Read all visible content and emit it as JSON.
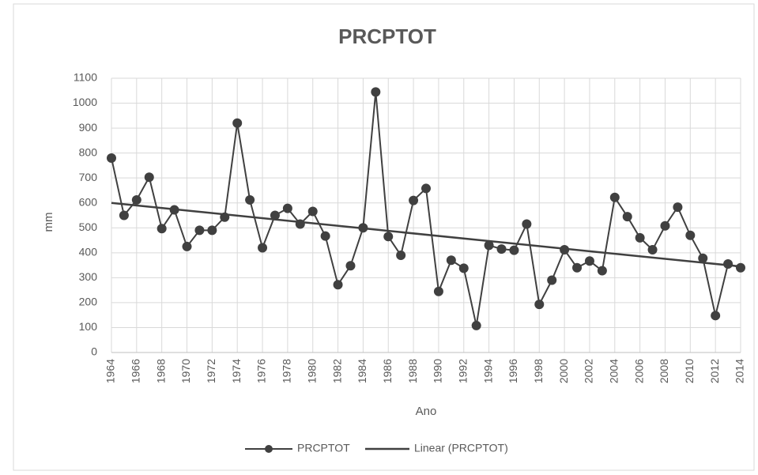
{
  "chart_data": {
    "type": "line",
    "title": "PRCPTOT",
    "x_label": "Ano",
    "y_label": "mm",
    "x": [
      1964,
      1965,
      1966,
      1967,
      1968,
      1969,
      1970,
      1971,
      1972,
      1973,
      1974,
      1975,
      1976,
      1977,
      1978,
      1979,
      1980,
      1981,
      1982,
      1983,
      1984,
      1985,
      1986,
      1987,
      1988,
      1989,
      1990,
      1991,
      1992,
      1993,
      1994,
      1995,
      1996,
      1997,
      1998,
      1999,
      2000,
      2001,
      2002,
      2003,
      2004,
      2005,
      2006,
      2007,
      2008,
      2009,
      2010,
      2011,
      2012,
      2013,
      2014
    ],
    "series": [
      {
        "name": "PRCPTOT",
        "color": "#404040",
        "values": [
          780,
          550,
          612,
          703,
          497,
          572,
          425,
          490,
          490,
          543,
          920,
          612,
          420,
          550,
          578,
          515,
          566,
          467,
          272,
          348,
          500,
          1045,
          465,
          390,
          610,
          658,
          245,
          370,
          338,
          108,
          430,
          415,
          410,
          515,
          193,
          290,
          412,
          340,
          367,
          328,
          622,
          545,
          460,
          412,
          508,
          583,
          470,
          378,
          148,
          355,
          340
        ]
      }
    ],
    "trendline": {
      "name": "Linear (PRCPTOT)",
      "color": "#404040",
      "x": [
        1964,
        2014
      ],
      "values": [
        600,
        345
      ]
    },
    "xlim": [
      1964,
      2014
    ],
    "xticks": [
      1964,
      1966,
      1968,
      1970,
      1972,
      1974,
      1976,
      1978,
      1980,
      1982,
      1984,
      1986,
      1988,
      1990,
      1992,
      1994,
      1996,
      1998,
      2000,
      2002,
      2004,
      2006,
      2008,
      2010,
      2012,
      2014
    ],
    "ylim": [
      0,
      1100
    ],
    "yticks": [
      0,
      100,
      200,
      300,
      400,
      500,
      600,
      700,
      800,
      900,
      1000,
      1100
    ],
    "grid": true,
    "legend": "bottom"
  }
}
